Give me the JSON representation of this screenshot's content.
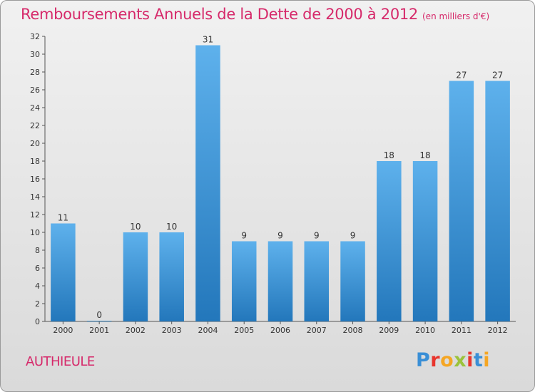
{
  "chart_data": {
    "type": "bar",
    "title": "Remboursements Annuels de la Dette de 2000 à 2012",
    "subtitle": "(en milliers d'€)",
    "xlabel": "",
    "ylabel": "",
    "categories": [
      "2000",
      "2001",
      "2002",
      "2003",
      "2004",
      "2005",
      "2006",
      "2007",
      "2008",
      "2009",
      "2010",
      "2011",
      "2012"
    ],
    "values": [
      11,
      0,
      10,
      10,
      31,
      9,
      9,
      9,
      9,
      18,
      18,
      27,
      27
    ],
    "ylim": [
      0,
      32
    ],
    "yticks": [
      0,
      2,
      4,
      6,
      8,
      10,
      12,
      14,
      16,
      18,
      20,
      22,
      24,
      26,
      28,
      30,
      32
    ],
    "grid": false,
    "bar_color": "#3f95d8",
    "bar_color_light": "#5eb1ec",
    "bar_color_dark": "#2377bb",
    "text_color": "#d6296a"
  },
  "footer": {
    "commune": "AUTHIEULE",
    "logo_letters": [
      {
        "char": "P",
        "color": "#3a8fd6"
      },
      {
        "char": "r",
        "color": "#e8352d"
      },
      {
        "char": "o",
        "color": "#f5a623"
      },
      {
        "char": "x",
        "color": "#9bc33b"
      },
      {
        "char": "i",
        "color": "#e8352d"
      },
      {
        "char": "t",
        "color": "#3a8fd6"
      },
      {
        "char": "i",
        "color": "#f5a623"
      }
    ]
  }
}
